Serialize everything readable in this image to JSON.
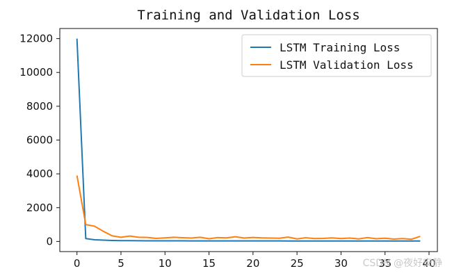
{
  "chart_data": {
    "type": "line",
    "title": "Training and Validation Loss",
    "xlabel": "",
    "ylabel": "",
    "xlim": [
      -1.95,
      40.95
    ],
    "ylim": [
      -600,
      12600
    ],
    "xticks": [
      0,
      5,
      10,
      15,
      20,
      25,
      30,
      35,
      40
    ],
    "yticks": [
      0,
      2000,
      4000,
      6000,
      8000,
      10000,
      12000
    ],
    "grid": false,
    "legend_position": "top-right",
    "x": [
      0,
      1,
      2,
      3,
      4,
      5,
      6,
      7,
      8,
      9,
      10,
      11,
      12,
      13,
      14,
      15,
      16,
      17,
      18,
      19,
      20,
      21,
      22,
      23,
      24,
      25,
      26,
      27,
      28,
      29,
      30,
      31,
      32,
      33,
      34,
      35,
      36,
      37,
      38,
      39
    ],
    "series": [
      {
        "name": "LSTM Training Loss",
        "color": "#1f77b4",
        "values": [
          12000,
          170,
          100,
          80,
          60,
          50,
          45,
          42,
          40,
          38,
          37,
          36,
          35,
          34,
          34,
          33,
          33,
          32,
          32,
          31,
          31,
          30,
          30,
          30,
          29,
          29,
          29,
          28,
          28,
          28,
          28,
          27,
          27,
          27,
          27,
          26,
          26,
          26,
          26,
          26
        ]
      },
      {
        "name": "LSTM Validation Loss",
        "color": "#ff7f0e",
        "values": [
          3900,
          1000,
          900,
          600,
          330,
          250,
          320,
          250,
          240,
          180,
          210,
          250,
          220,
          200,
          250,
          160,
          230,
          210,
          280,
          200,
          240,
          210,
          200,
          190,
          260,
          150,
          220,
          170,
          180,
          210,
          170,
          200,
          150,
          230,
          160,
          190,
          140,
          170,
          130,
          300
        ]
      }
    ]
  },
  "watermark": "CSDN @夜好安静"
}
